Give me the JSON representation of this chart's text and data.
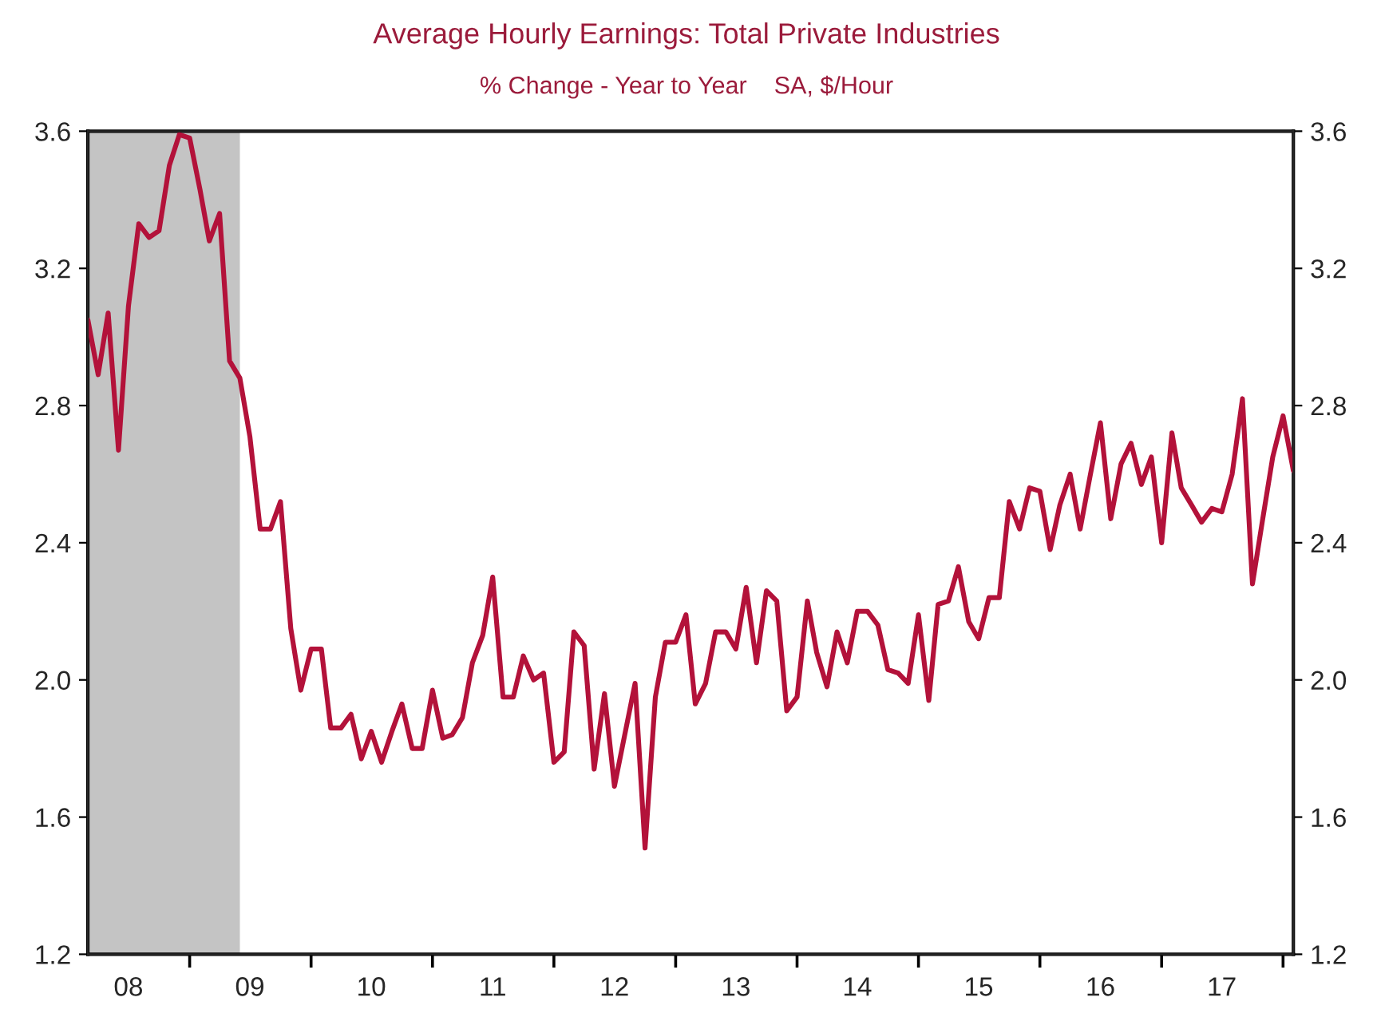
{
  "chart_data": {
    "type": "line",
    "title": "Average Hourly Earnings: Total Private Industries",
    "subtitle": "% Change - Year to Year    SA, $/Hour",
    "x": [
      "2008-03",
      "2008-04",
      "2008-05",
      "2008-06",
      "2008-07",
      "2008-08",
      "2008-09",
      "2008-10",
      "2008-11",
      "2008-12",
      "2009-01",
      "2009-02",
      "2009-03",
      "2009-04",
      "2009-05",
      "2009-06",
      "2009-07",
      "2009-08",
      "2009-09",
      "2009-10",
      "2009-11",
      "2009-12",
      "2010-01",
      "2010-02",
      "2010-03",
      "2010-04",
      "2010-05",
      "2010-06",
      "2010-07",
      "2010-08",
      "2010-09",
      "2010-10",
      "2010-11",
      "2010-12",
      "2011-01",
      "2011-02",
      "2011-03",
      "2011-04",
      "2011-05",
      "2011-06",
      "2011-07",
      "2011-08",
      "2011-09",
      "2011-10",
      "2011-11",
      "2011-12",
      "2012-01",
      "2012-02",
      "2012-03",
      "2012-04",
      "2012-05",
      "2012-06",
      "2012-07",
      "2012-08",
      "2012-09",
      "2012-10",
      "2012-11",
      "2012-12",
      "2013-01",
      "2013-02",
      "2013-03",
      "2013-04",
      "2013-05",
      "2013-06",
      "2013-07",
      "2013-08",
      "2013-09",
      "2013-10",
      "2013-11",
      "2013-12",
      "2014-01",
      "2014-02",
      "2014-03",
      "2014-04",
      "2014-05",
      "2014-06",
      "2014-07",
      "2014-08",
      "2014-09",
      "2014-10",
      "2014-11",
      "2014-12",
      "2015-01",
      "2015-02",
      "2015-03",
      "2015-04",
      "2015-05",
      "2015-06",
      "2015-07",
      "2015-08",
      "2015-09",
      "2015-10",
      "2015-11",
      "2015-12",
      "2016-01",
      "2016-02",
      "2016-03",
      "2016-04",
      "2016-05",
      "2016-06",
      "2016-07",
      "2016-08",
      "2016-09",
      "2016-10",
      "2016-11",
      "2016-12",
      "2017-01",
      "2017-02",
      "2017-03",
      "2017-04",
      "2017-05",
      "2017-06",
      "2017-07",
      "2017-08",
      "2017-09",
      "2017-10",
      "2017-11",
      "2017-12",
      "2018-01",
      "2018-02"
    ],
    "series": [
      {
        "color": "#b3123a",
        "values": [
          3.05,
          2.89,
          3.07,
          2.67,
          3.09,
          3.33,
          3.29,
          3.31,
          3.5,
          3.59,
          3.58,
          3.43,
          3.28,
          3.36,
          2.93,
          2.88,
          2.71,
          2.44,
          2.44,
          2.52,
          2.15,
          1.97,
          2.09,
          2.09,
          1.86,
          1.86,
          1.9,
          1.77,
          1.85,
          1.76,
          1.85,
          1.93,
          1.8,
          1.8,
          1.97,
          1.83,
          1.84,
          1.89,
          2.05,
          2.13,
          2.3,
          1.95,
          1.95,
          2.07,
          2.0,
          2.02,
          1.76,
          1.79,
          2.14,
          2.1,
          1.74,
          1.96,
          1.69,
          1.84,
          1.99,
          1.51,
          1.95,
          2.11,
          2.11,
          2.19,
          1.93,
          1.99,
          2.14,
          2.14,
          2.09,
          2.27,
          2.05,
          2.26,
          2.23,
          1.91,
          1.95,
          2.23,
          2.08,
          1.98,
          2.14,
          2.05,
          2.2,
          2.2,
          2.16,
          2.03,
          2.02,
          1.99,
          2.19,
          1.94,
          2.22,
          2.23,
          2.33,
          2.17,
          2.12,
          2.24,
          2.24,
          2.52,
          2.44,
          2.56,
          2.55,
          2.38,
          2.51,
          2.6,
          2.44,
          2.6,
          2.75,
          2.47,
          2.63,
          2.69,
          2.57,
          2.65,
          2.4,
          2.72,
          2.56,
          2.51,
          2.46,
          2.5,
          2.49,
          2.6,
          2.82,
          2.28,
          2.47,
          2.65,
          2.77,
          2.61
        ]
      }
    ],
    "xlim": [
      "2008-03",
      "2018-02"
    ],
    "xticks": [
      {
        "value": "2008-07",
        "label": "08"
      },
      {
        "value": "2009-01",
        "label": null
      },
      {
        "value": "2009-07",
        "label": "09"
      },
      {
        "value": "2010-01",
        "label": null
      },
      {
        "value": "2010-07",
        "label": "10"
      },
      {
        "value": "2011-01",
        "label": null
      },
      {
        "value": "2011-07",
        "label": "11"
      },
      {
        "value": "2012-01",
        "label": null
      },
      {
        "value": "2012-07",
        "label": "12"
      },
      {
        "value": "2013-01",
        "label": null
      },
      {
        "value": "2013-07",
        "label": "13"
      },
      {
        "value": "2014-01",
        "label": null
      },
      {
        "value": "2014-07",
        "label": "14"
      },
      {
        "value": "2015-01",
        "label": null
      },
      {
        "value": "2015-07",
        "label": "15"
      },
      {
        "value": "2016-01",
        "label": null
      },
      {
        "value": "2016-07",
        "label": "16"
      },
      {
        "value": "2017-01",
        "label": null
      },
      {
        "value": "2017-07",
        "label": "17"
      },
      {
        "value": "2018-01",
        "label": null
      }
    ],
    "ylim": [
      1.2,
      3.6
    ],
    "yticks": [
      1.2,
      1.6,
      {
        "value": 2,
        "label": "2.0"
      },
      2.4,
      2.8,
      3.2,
      3.6
    ],
    "y2lim": [
      1.2,
      3.6
    ],
    "y2ticks": [
      1.2,
      1.6,
      {
        "value": 2,
        "label": "2.0"
      },
      2.4,
      2.8,
      3.2,
      3.6
    ],
    "bands": [
      {
        "axis": "x",
        "from": "2008-03",
        "to": "2009-06",
        "color": "#c4c4c4"
      }
    ],
    "grid": false,
    "legend": false,
    "marker": "none",
    "line_style": "solid"
  }
}
